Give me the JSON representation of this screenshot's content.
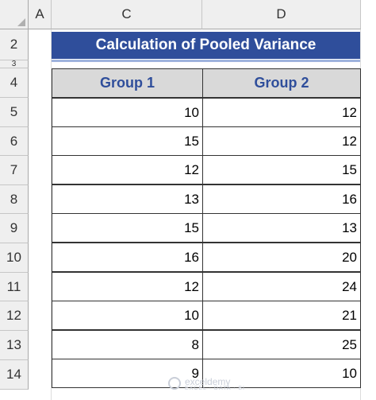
{
  "columns": [
    "A",
    "C",
    "D"
  ],
  "rows": [
    "2",
    "3",
    "4",
    "5",
    "6",
    "7",
    "8",
    "9",
    "10",
    "11",
    "12",
    "13",
    "14"
  ],
  "title": "Calculation of Pooled Variance",
  "table": {
    "headers": [
      "Group 1",
      "Group 2"
    ],
    "rows": [
      [
        "10",
        "12"
      ],
      [
        "15",
        "12"
      ],
      [
        "12",
        "15"
      ],
      [
        "13",
        "16"
      ],
      [
        "15",
        "13"
      ],
      [
        "16",
        "20"
      ],
      [
        "12",
        "24"
      ],
      [
        "10",
        "21"
      ],
      [
        "8",
        "25"
      ],
      [
        "9",
        "10"
      ]
    ]
  },
  "watermark": {
    "name": "exceldemy",
    "tagline": "EXCEL · DATA · BI"
  }
}
